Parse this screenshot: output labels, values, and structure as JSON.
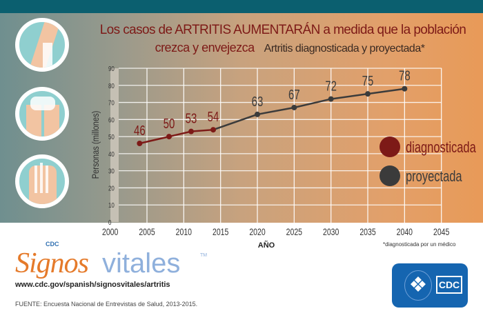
{
  "title_line1": "Los casos de ARTRITIS AUMENTARÁN a medida que la población",
  "title_line2": "crezca y envejezca",
  "subtitle": "Artritis diagnosticada y proyectada*",
  "footnote": "*diagnosticada por un médico",
  "logo": {
    "cdc": "CDC",
    "signos": "Signos",
    "vitales": "vitales",
    "tm": "TM",
    "hhs_cdc": "CDC"
  },
  "url": "www.cdc.gov/spanish/signosvitales/artritis",
  "source": "FUENTE: Encuesta Nacional de Entrevistas de Salud, 2013-2015.",
  "colors": {
    "diagnosed": "#7d1a17",
    "projected": "#3b3b3b"
  },
  "chart_data": {
    "type": "line",
    "title": "Artritis diagnosticada y proyectada*",
    "xlabel": "AÑO",
    "ylabel": "Personas (millones)",
    "xlim": [
      2000,
      2045
    ],
    "ylim": [
      0,
      90
    ],
    "xticks": [
      2000,
      2005,
      2010,
      2015,
      2020,
      2025,
      2030,
      2035,
      2040,
      2045
    ],
    "yticks": [
      0,
      10,
      20,
      30,
      40,
      50,
      60,
      70,
      80,
      90
    ],
    "grid": true,
    "legend_position": "right",
    "series": [
      {
        "name": "diagnosticada",
        "x": [
          2004,
          2008,
          2011,
          2014
        ],
        "y": [
          46,
          50,
          53,
          54
        ]
      },
      {
        "name": "proyectada",
        "x": [
          2014,
          2020,
          2025,
          2030,
          2035,
          2040
        ],
        "y": [
          54,
          63,
          67,
          72,
          75,
          78
        ]
      }
    ],
    "data_labels": [
      {
        "x": 2004,
        "label": "46",
        "series": "diagnosticada"
      },
      {
        "x": 2008,
        "label": "50",
        "series": "diagnosticada"
      },
      {
        "x": 2011,
        "label": "53",
        "series": "diagnosticada"
      },
      {
        "x": 2014,
        "label": "54",
        "series": "diagnosticada"
      },
      {
        "x": 2020,
        "label": "63",
        "series": "proyectada"
      },
      {
        "x": 2025,
        "label": "67",
        "series": "proyectada"
      },
      {
        "x": 2030,
        "label": "72",
        "series": "proyectada"
      },
      {
        "x": 2035,
        "label": "75",
        "series": "proyectada"
      },
      {
        "x": 2040,
        "label": "78",
        "series": "proyectada"
      }
    ]
  }
}
